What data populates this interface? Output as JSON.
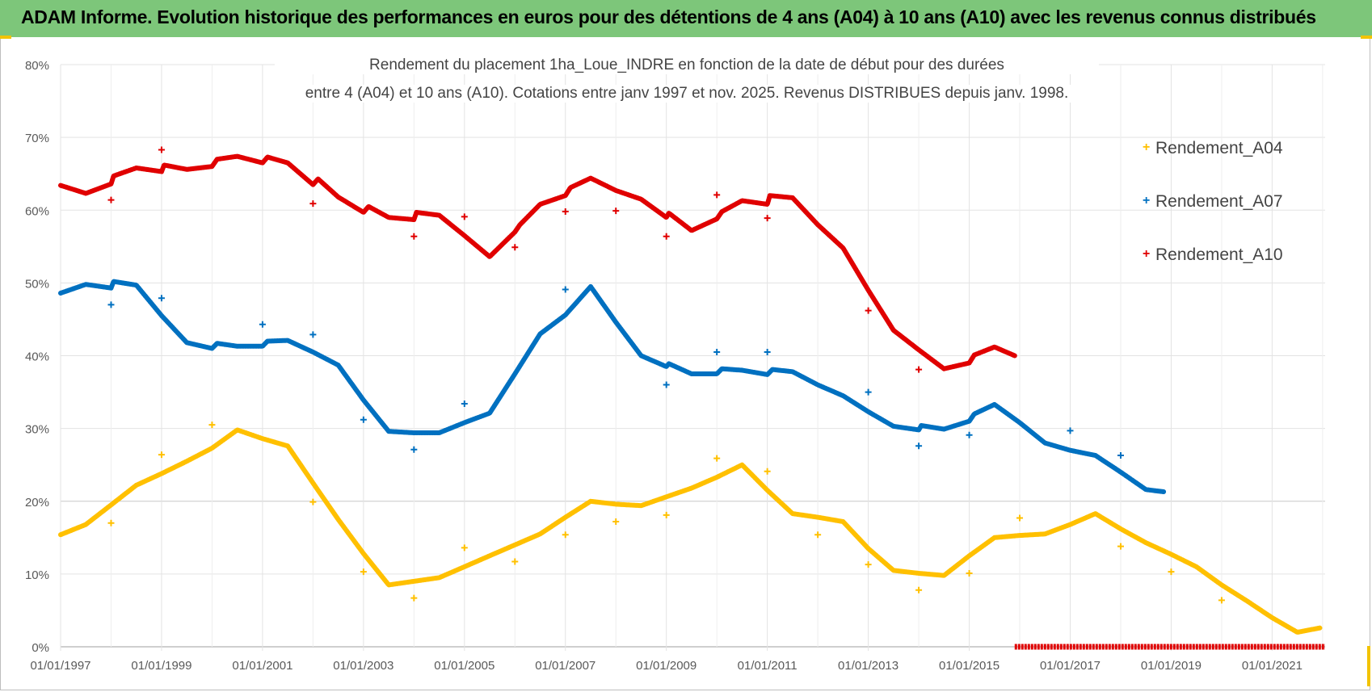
{
  "header": {
    "title": "ADAM Informe. Evolution historique des performances en euros pour des détentions de 4 ans (A04) à 10 ans (A10) avec les revenus connus distribués"
  },
  "chart_data": {
    "type": "scatter",
    "title_line1": "Rendement du placement 1ha_Loue_INDRE en fonction de la date de début pour des durées",
    "title_line2": "entre 4 (A04) et 10 ans (A10).  Cotations entre janv 1997 et nov. 2025. Revenus DISTRIBUES depuis janv. 1998.",
    "xlabel": "",
    "ylabel": "",
    "xlim": [
      1997.0,
      2022.05
    ],
    "ylim": [
      0,
      80
    ],
    "y_ticks": [
      "0%",
      "10%",
      "20%",
      "30%",
      "40%",
      "50%",
      "60%",
      "70%",
      "80%"
    ],
    "x_ticks": [
      {
        "year": 1997,
        "label": "01/01/1997"
      },
      {
        "year": 1999,
        "label": "01/01/1999"
      },
      {
        "year": 2001,
        "label": "01/01/2001"
      },
      {
        "year": 2003,
        "label": "01/01/2003"
      },
      {
        "year": 2005,
        "label": "01/01/2005"
      },
      {
        "year": 2007,
        "label": "01/01/2007"
      },
      {
        "year": 2009,
        "label": "01/01/2009"
      },
      {
        "year": 2011,
        "label": "01/01/2011"
      },
      {
        "year": 2013,
        "label": "01/01/2013"
      },
      {
        "year": 2015,
        "label": "01/01/2015"
      },
      {
        "year": 2017,
        "label": "01/01/2017"
      },
      {
        "year": 2019,
        "label": "01/01/2019"
      },
      {
        "year": 2021,
        "label": "01/01/2021"
      }
    ],
    "grid": true,
    "legend_position": "top-right",
    "series": [
      {
        "name": "Rendement_A04",
        "color": "#ffc000",
        "points": [
          [
            1997.0,
            15.4
          ],
          [
            1997.5,
            16.8
          ],
          [
            1998.0,
            19.5
          ],
          [
            1998.5,
            22.2
          ],
          [
            1999.0,
            23.8
          ],
          [
            1999.5,
            25.5
          ],
          [
            2000.0,
            27.3
          ],
          [
            2000.5,
            29.8
          ],
          [
            2001.0,
            28.6
          ],
          [
            2001.5,
            27.6
          ],
          [
            2002.0,
            22.5
          ],
          [
            2002.5,
            17.5
          ],
          [
            2003.0,
            12.8
          ],
          [
            2003.5,
            8.5
          ],
          [
            2004.0,
            9.0
          ],
          [
            2004.5,
            9.5
          ],
          [
            2005.0,
            11.0
          ],
          [
            2005.5,
            12.5
          ],
          [
            2006.0,
            14.0
          ],
          [
            2006.5,
            15.5
          ],
          [
            2007.0,
            17.8
          ],
          [
            2007.5,
            20.0
          ],
          [
            2008.0,
            19.6
          ],
          [
            2008.5,
            19.4
          ],
          [
            2009.0,
            20.6
          ],
          [
            2009.5,
            21.8
          ],
          [
            2010.0,
            23.3
          ],
          [
            2010.5,
            25.0
          ],
          [
            2011.0,
            21.5
          ],
          [
            2011.5,
            18.3
          ],
          [
            2012.0,
            17.8
          ],
          [
            2012.5,
            17.2
          ],
          [
            2013.0,
            13.5
          ],
          [
            2013.5,
            10.5
          ],
          [
            2014.0,
            10.1
          ],
          [
            2014.5,
            9.8
          ],
          [
            2015.0,
            12.5
          ],
          [
            2015.5,
            15.0
          ],
          [
            2016.0,
            15.3
          ],
          [
            2016.5,
            15.5
          ],
          [
            2017.0,
            16.8
          ],
          [
            2017.5,
            18.3
          ],
          [
            2018.0,
            16.2
          ],
          [
            2018.5,
            14.3
          ],
          [
            2019.0,
            12.7
          ],
          [
            2019.5,
            11.0
          ],
          [
            2020.0,
            8.5
          ],
          [
            2020.5,
            6.3
          ],
          [
            2021.0,
            4.0
          ],
          [
            2021.5,
            2.0
          ],
          [
            2021.95,
            2.6
          ]
        ],
        "outliers": [
          [
            1998.0,
            17.0
          ],
          [
            1999.0,
            26.4
          ],
          [
            2000.0,
            30.5
          ],
          [
            2002.0,
            19.9
          ],
          [
            2003.0,
            10.3
          ],
          [
            2004.0,
            6.7
          ],
          [
            2005.0,
            13.6
          ],
          [
            2006.0,
            11.7
          ],
          [
            2007.0,
            15.4
          ],
          [
            2008.0,
            17.2
          ],
          [
            2009.0,
            18.1
          ],
          [
            2010.0,
            25.9
          ],
          [
            2011.0,
            24.1
          ],
          [
            2012.0,
            15.4
          ],
          [
            2013.0,
            11.3
          ],
          [
            2014.0,
            7.8
          ],
          [
            2015.0,
            10.1
          ],
          [
            2016.0,
            17.7
          ],
          [
            2018.0,
            13.8
          ],
          [
            2019.0,
            10.3
          ],
          [
            2020.0,
            6.4
          ]
        ]
      },
      {
        "name": "Rendement_A07",
        "color": "#0070c0",
        "points": [
          [
            1997.0,
            48.6
          ],
          [
            1997.5,
            49.8
          ],
          [
            1998.0,
            49.3
          ],
          [
            1998.05,
            50.2
          ],
          [
            1998.5,
            49.7
          ],
          [
            1999.0,
            45.5
          ],
          [
            1999.5,
            41.8
          ],
          [
            2000.0,
            41.0
          ],
          [
            2000.1,
            41.7
          ],
          [
            2000.5,
            41.3
          ],
          [
            2001.0,
            41.3
          ],
          [
            2001.1,
            42.0
          ],
          [
            2001.5,
            42.1
          ],
          [
            2002.0,
            40.5
          ],
          [
            2002.5,
            38.7
          ],
          [
            2003.0,
            33.9
          ],
          [
            2003.5,
            29.6
          ],
          [
            2004.0,
            29.4
          ],
          [
            2004.5,
            29.4
          ],
          [
            2005.0,
            30.8
          ],
          [
            2005.5,
            32.1
          ],
          [
            2006.0,
            37.5
          ],
          [
            2006.5,
            43.0
          ],
          [
            2007.0,
            45.6
          ],
          [
            2007.5,
            49.5
          ],
          [
            2008.0,
            44.6
          ],
          [
            2008.5,
            40.0
          ],
          [
            2009.0,
            38.5
          ],
          [
            2009.05,
            38.9
          ],
          [
            2009.5,
            37.5
          ],
          [
            2010.0,
            37.5
          ],
          [
            2010.1,
            38.2
          ],
          [
            2010.5,
            38.0
          ],
          [
            2011.0,
            37.4
          ],
          [
            2011.1,
            38.1
          ],
          [
            2011.5,
            37.8
          ],
          [
            2012.0,
            36.0
          ],
          [
            2012.5,
            34.5
          ],
          [
            2013.0,
            32.3
          ],
          [
            2013.5,
            30.3
          ],
          [
            2014.0,
            29.8
          ],
          [
            2014.05,
            30.4
          ],
          [
            2014.5,
            29.9
          ],
          [
            2015.0,
            31.0
          ],
          [
            2015.1,
            32.0
          ],
          [
            2015.5,
            33.3
          ],
          [
            2016.0,
            30.8
          ],
          [
            2016.5,
            28.0
          ],
          [
            2017.0,
            27.0
          ],
          [
            2017.5,
            26.3
          ],
          [
            2018.0,
            24.0
          ],
          [
            2018.5,
            21.6
          ],
          [
            2018.85,
            21.3
          ]
        ],
        "outliers": [
          [
            1998.0,
            47.0
          ],
          [
            1999.0,
            47.9
          ],
          [
            2001.0,
            44.3
          ],
          [
            2002.0,
            42.9
          ],
          [
            2003.0,
            31.2
          ],
          [
            2004.0,
            27.1
          ],
          [
            2005.0,
            33.4
          ],
          [
            2007.0,
            49.1
          ],
          [
            2009.0,
            36.0
          ],
          [
            2010.0,
            40.5
          ],
          [
            2011.0,
            40.5
          ],
          [
            2013.0,
            35.0
          ],
          [
            2014.0,
            27.6
          ],
          [
            2015.0,
            29.1
          ],
          [
            2017.0,
            29.7
          ],
          [
            2018.0,
            26.3
          ]
        ]
      },
      {
        "name": "Rendement_A10",
        "color": "#e00000",
        "points": [
          [
            1997.0,
            63.4
          ],
          [
            1997.5,
            62.3
          ],
          [
            1998.0,
            63.6
          ],
          [
            1998.05,
            64.7
          ],
          [
            1998.5,
            65.8
          ],
          [
            1999.0,
            65.3
          ],
          [
            1999.05,
            66.2
          ],
          [
            1999.5,
            65.6
          ],
          [
            2000.0,
            66.0
          ],
          [
            2000.1,
            67.0
          ],
          [
            2000.5,
            67.4
          ],
          [
            2001.0,
            66.5
          ],
          [
            2001.1,
            67.3
          ],
          [
            2001.5,
            66.5
          ],
          [
            2002.0,
            63.5
          ],
          [
            2002.1,
            64.3
          ],
          [
            2002.5,
            61.8
          ],
          [
            2003.0,
            59.7
          ],
          [
            2003.1,
            60.5
          ],
          [
            2003.5,
            59.0
          ],
          [
            2004.0,
            58.7
          ],
          [
            2004.05,
            59.7
          ],
          [
            2004.5,
            59.3
          ],
          [
            2005.0,
            56.5
          ],
          [
            2005.5,
            53.6
          ],
          [
            2006.0,
            57.0
          ],
          [
            2006.1,
            58.0
          ],
          [
            2006.5,
            60.8
          ],
          [
            2007.0,
            62.0
          ],
          [
            2007.1,
            63.1
          ],
          [
            2007.5,
            64.4
          ],
          [
            2008.0,
            62.7
          ],
          [
            2008.5,
            61.5
          ],
          [
            2009.0,
            59.0
          ],
          [
            2009.05,
            59.6
          ],
          [
            2009.5,
            57.2
          ],
          [
            2010.0,
            58.8
          ],
          [
            2010.1,
            59.8
          ],
          [
            2010.5,
            61.3
          ],
          [
            2011.0,
            60.8
          ],
          [
            2011.05,
            62.0
          ],
          [
            2011.5,
            61.7
          ],
          [
            2012.0,
            58.0
          ],
          [
            2012.5,
            54.8
          ],
          [
            2013.0,
            49.0
          ],
          [
            2013.5,
            43.5
          ],
          [
            2014.0,
            40.8
          ],
          [
            2014.5,
            38.2
          ],
          [
            2015.0,
            39.0
          ],
          [
            2015.1,
            40.1
          ],
          [
            2015.5,
            41.2
          ],
          [
            2015.9,
            40.0
          ]
        ],
        "zero_band": [
          2015.9,
          2022.05
        ],
        "outliers": [
          [
            1998.0,
            61.4
          ],
          [
            1999.0,
            68.3
          ],
          [
            2002.0,
            60.9
          ],
          [
            2004.0,
            56.4
          ],
          [
            2005.0,
            59.1
          ],
          [
            2006.0,
            54.9
          ],
          [
            2007.0,
            59.8
          ],
          [
            2008.0,
            59.9
          ],
          [
            2009.0,
            56.4
          ],
          [
            2010.0,
            62.1
          ],
          [
            2011.0,
            58.9
          ],
          [
            2013.0,
            46.2
          ],
          [
            2014.0,
            38.1
          ]
        ]
      }
    ]
  }
}
